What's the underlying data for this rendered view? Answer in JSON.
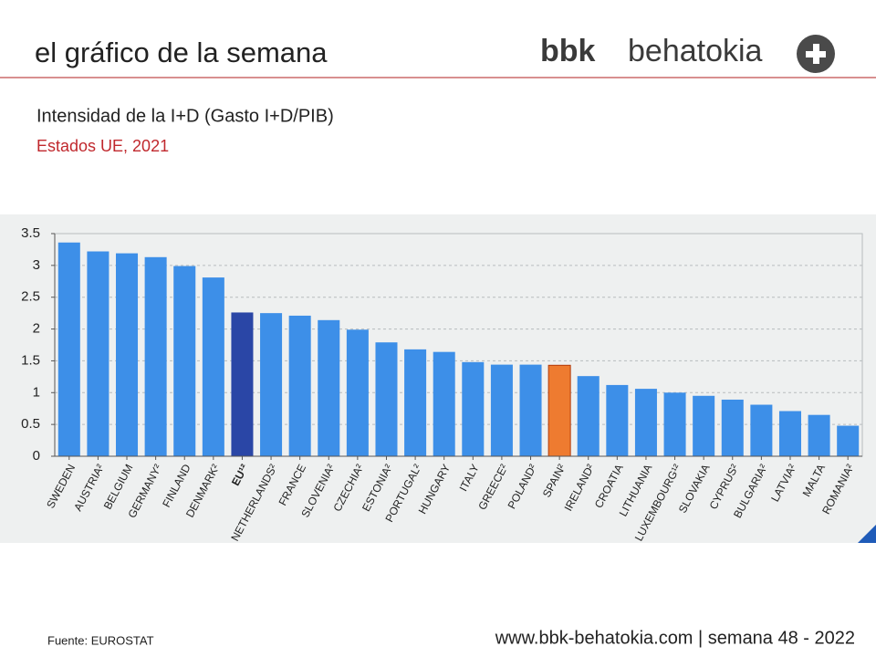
{
  "header": {
    "title": "el gráfico de la semana"
  },
  "logo": {
    "brand": "bbk",
    "name": "behatokia"
  },
  "footer": {
    "source": "Fuente: EUROSTAT",
    "site": "www.bbk-behatokia.com | semana 48 - 2022"
  },
  "chart_data": {
    "type": "bar",
    "title": "Intensidad de la I+D (Gasto I+D/PIB)",
    "subtitle": "Estados UE, 2021",
    "categories": [
      "SWEDEN",
      "AUSTRIA²",
      "BELGIUM",
      "GERMANY²",
      "FINLAND",
      "DENMARK²",
      "EU¹²",
      "NETHERLANDS²",
      "FRANCE",
      "SLOVENIA²",
      "CZECHIA²",
      "ESTONIA²",
      "PORTUGAL²",
      "HUNGARY",
      "ITALY",
      "GREECE²",
      "POLAND²",
      "SPAIN²",
      "IRELAND²",
      "CROATIA",
      "LITHUANIA",
      "LUXEMBOURG¹²",
      "SLOVAKIA",
      "CYPRUS²",
      "BULGARIA²",
      "LATVIA²",
      "MALTA",
      "ROMANIA²"
    ],
    "values": [
      3.36,
      3.22,
      3.19,
      3.13,
      2.99,
      2.81,
      2.26,
      2.25,
      2.21,
      2.14,
      1.99,
      1.79,
      1.68,
      1.64,
      1.48,
      1.44,
      1.44,
      1.43,
      1.26,
      1.12,
      1.06,
      1.0,
      0.95,
      0.89,
      0.81,
      0.71,
      0.65,
      0.48
    ],
    "colors": [
      "#3d8fe8",
      "#3d8fe8",
      "#3d8fe8",
      "#3d8fe8",
      "#3d8fe8",
      "#3d8fe8",
      "#2a46a6",
      "#3d8fe8",
      "#3d8fe8",
      "#3d8fe8",
      "#3d8fe8",
      "#3d8fe8",
      "#3d8fe8",
      "#3d8fe8",
      "#3d8fe8",
      "#3d8fe8",
      "#3d8fe8",
      "#ee7b30",
      "#3d8fe8",
      "#3d8fe8",
      "#3d8fe8",
      "#3d8fe8",
      "#3d8fe8",
      "#3d8fe8",
      "#3d8fe8",
      "#3d8fe8",
      "#3d8fe8",
      "#3d8fe8"
    ],
    "ylim": [
      0,
      3.5
    ],
    "yticks": [
      0,
      0.5,
      1,
      1.5,
      2,
      2.5,
      3,
      3.5
    ],
    "grid": true
  }
}
